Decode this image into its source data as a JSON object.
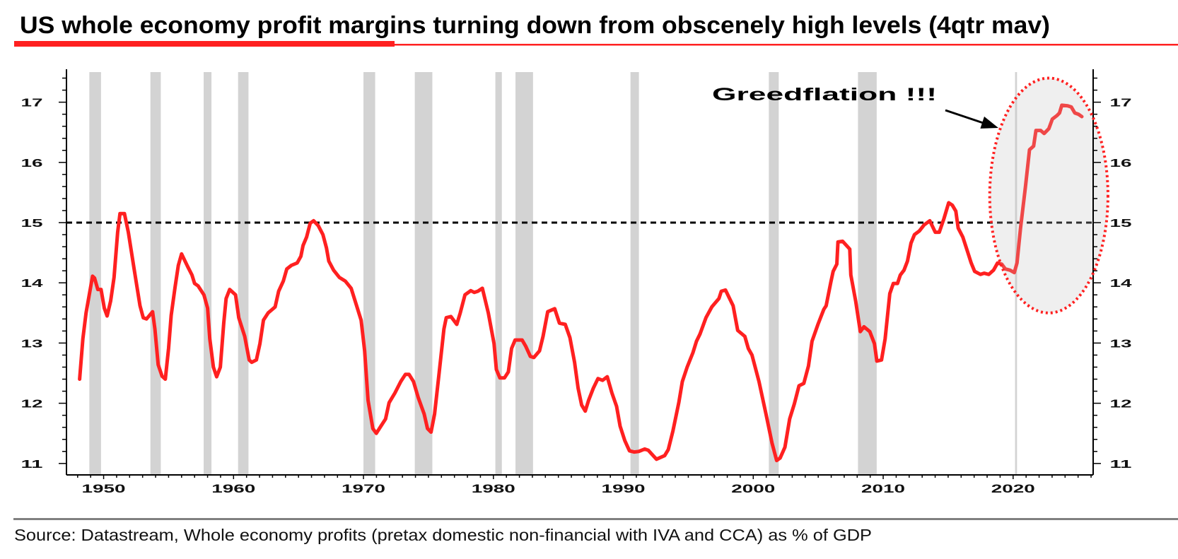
{
  "title": "US whole economy profit margins turning down from obscenely high levels (4qtr mav)",
  "source": "Source: Datastream, Whole economy profits (pretax domestic non-financial with IVA and CCA) as % of GDP",
  "annotation": {
    "text": "Greedflation !!!"
  },
  "colors": {
    "series": "#ff2020",
    "accent": "#ff2020",
    "recession": "#d3d3d3",
    "reference_line": "#000000",
    "highlight_fill": "#bebebe",
    "source_rule": "#808080"
  },
  "chart_data": {
    "type": "line",
    "title": "US whole economy profit margins turning down from obscenely high levels (4qtr mav)",
    "xlabel": "",
    "ylabel": "",
    "xlim": [
      1947.14,
      2026.16
    ],
    "ylim": [
      10.81,
      17.5
    ],
    "grid": false,
    "xticks": [
      1950,
      1960,
      1970,
      1980,
      1990,
      2000,
      2010,
      2020
    ],
    "xtick_labels": [
      "1950",
      "1960",
      "1970",
      "1980",
      "1990",
      "2000",
      "2010",
      "2020"
    ],
    "yticks": [
      11,
      12,
      13,
      14,
      15,
      16,
      17
    ],
    "ytick_labels": [
      "11",
      "12",
      "13",
      "14",
      "15",
      "16",
      "17"
    ],
    "reference_line": {
      "y": 15,
      "style": "dashed"
    },
    "recessions": [
      [
        1948.9,
        1949.8
      ],
      [
        1953.6,
        1954.4
      ],
      [
        1957.7,
        1958.3
      ],
      [
        1960.35,
        1961.15
      ],
      [
        1970.0,
        1970.9
      ],
      [
        1973.95,
        1975.3
      ],
      [
        1980.15,
        1980.65
      ],
      [
        1981.7,
        1983.05
      ],
      [
        1990.55,
        1991.2
      ],
      [
        2001.2,
        2001.96
      ],
      [
        2008.06,
        2009.5
      ],
      [
        2020.15,
        2020.3
      ]
    ],
    "highlight": {
      "x_range": [
        2018.2,
        2027.3
      ],
      "y_range": [
        13.5,
        17.4
      ],
      "label": "Greedflation !!!"
    },
    "series": [
      {
        "points": [
          [
            1948.15,
            12.4
          ],
          [
            1948.4,
            13.07
          ],
          [
            1948.65,
            13.5
          ],
          [
            1949.15,
            14.11
          ],
          [
            1949.3,
            14.08
          ],
          [
            1949.55,
            13.89
          ],
          [
            1949.8,
            13.89
          ],
          [
            1950.05,
            13.58
          ],
          [
            1950.27,
            13.45
          ],
          [
            1950.54,
            13.7
          ],
          [
            1950.8,
            14.09
          ],
          [
            1951.08,
            14.84
          ],
          [
            1951.26,
            15.15
          ],
          [
            1951.6,
            15.15
          ],
          [
            1951.9,
            14.84
          ],
          [
            1952.33,
            14.25
          ],
          [
            1952.8,
            13.62
          ],
          [
            1953.05,
            13.42
          ],
          [
            1953.3,
            13.4
          ],
          [
            1953.77,
            13.52
          ],
          [
            1953.95,
            13.23
          ],
          [
            1954.2,
            12.64
          ],
          [
            1954.5,
            12.45
          ],
          [
            1954.75,
            12.4
          ],
          [
            1955.0,
            12.91
          ],
          [
            1955.2,
            13.46
          ],
          [
            1955.5,
            13.93
          ],
          [
            1955.75,
            14.29
          ],
          [
            1956.0,
            14.48
          ],
          [
            1956.47,
            14.27
          ],
          [
            1956.8,
            14.13
          ],
          [
            1957.0,
            13.99
          ],
          [
            1957.27,
            13.95
          ],
          [
            1957.72,
            13.8
          ],
          [
            1958.0,
            13.58
          ],
          [
            1958.17,
            13.07
          ],
          [
            1958.45,
            12.6
          ],
          [
            1958.7,
            12.44
          ],
          [
            1958.98,
            12.6
          ],
          [
            1959.25,
            13.34
          ],
          [
            1959.43,
            13.74
          ],
          [
            1959.7,
            13.89
          ],
          [
            1960.15,
            13.8
          ],
          [
            1960.4,
            13.42
          ],
          [
            1960.86,
            13.11
          ],
          [
            1961.2,
            12.72
          ],
          [
            1961.4,
            12.68
          ],
          [
            1961.76,
            12.72
          ],
          [
            1962.03,
            12.99
          ],
          [
            1962.3,
            13.38
          ],
          [
            1962.66,
            13.5
          ],
          [
            1963.2,
            13.6
          ],
          [
            1963.47,
            13.86
          ],
          [
            1963.83,
            14.03
          ],
          [
            1964.1,
            14.23
          ],
          [
            1964.45,
            14.29
          ],
          [
            1964.9,
            14.33
          ],
          [
            1965.18,
            14.44
          ],
          [
            1965.35,
            14.62
          ],
          [
            1965.62,
            14.76
          ],
          [
            1965.9,
            14.99
          ],
          [
            1966.16,
            15.03
          ],
          [
            1966.52,
            14.95
          ],
          [
            1966.88,
            14.8
          ],
          [
            1967.15,
            14.58
          ],
          [
            1967.33,
            14.36
          ],
          [
            1967.7,
            14.21
          ],
          [
            1968.14,
            14.09
          ],
          [
            1968.6,
            14.03
          ],
          [
            1969.05,
            13.91
          ],
          [
            1969.82,
            13.38
          ],
          [
            1970.09,
            12.87
          ],
          [
            1970.35,
            12.05
          ],
          [
            1970.72,
            11.58
          ],
          [
            1970.99,
            11.5
          ],
          [
            1971.34,
            11.62
          ],
          [
            1971.7,
            11.74
          ],
          [
            1971.97,
            12.01
          ],
          [
            1972.42,
            12.17
          ],
          [
            1972.87,
            12.36
          ],
          [
            1973.23,
            12.48
          ],
          [
            1973.5,
            12.48
          ],
          [
            1973.85,
            12.36
          ],
          [
            1974.22,
            12.09
          ],
          [
            1974.67,
            11.82
          ],
          [
            1974.93,
            11.58
          ],
          [
            1975.2,
            11.52
          ],
          [
            1975.47,
            11.82
          ],
          [
            1975.83,
            12.52
          ],
          [
            1976.19,
            13.23
          ],
          [
            1976.37,
            13.42
          ],
          [
            1976.73,
            13.44
          ],
          [
            1977.18,
            13.31
          ],
          [
            1977.45,
            13.5
          ],
          [
            1977.81,
            13.8
          ],
          [
            1978.26,
            13.87
          ],
          [
            1978.53,
            13.84
          ],
          [
            1978.8,
            13.86
          ],
          [
            1979.15,
            13.91
          ],
          [
            1979.61,
            13.5
          ],
          [
            1980.05,
            12.99
          ],
          [
            1980.23,
            12.56
          ],
          [
            1980.5,
            12.42
          ],
          [
            1980.85,
            12.42
          ],
          [
            1981.15,
            12.52
          ],
          [
            1981.4,
            12.91
          ],
          [
            1981.67,
            13.05
          ],
          [
            1982.21,
            13.05
          ],
          [
            1982.48,
            12.95
          ],
          [
            1982.84,
            12.78
          ],
          [
            1983.11,
            12.76
          ],
          [
            1983.55,
            12.87
          ],
          [
            1983.82,
            13.11
          ],
          [
            1984.18,
            13.52
          ],
          [
            1984.72,
            13.57
          ],
          [
            1985.08,
            13.33
          ],
          [
            1985.53,
            13.31
          ],
          [
            1985.89,
            13.09
          ],
          [
            1986.25,
            12.68
          ],
          [
            1986.52,
            12.25
          ],
          [
            1986.79,
            11.97
          ],
          [
            1987.07,
            11.87
          ],
          [
            1987.33,
            12.05
          ],
          [
            1987.69,
            12.25
          ],
          [
            1988.05,
            12.41
          ],
          [
            1988.4,
            12.38
          ],
          [
            1988.76,
            12.44
          ],
          [
            1989.12,
            12.17
          ],
          [
            1989.48,
            11.95
          ],
          [
            1989.75,
            11.62
          ],
          [
            1990.11,
            11.38
          ],
          [
            1990.47,
            11.21
          ],
          [
            1990.83,
            11.19
          ],
          [
            1991.19,
            11.2
          ],
          [
            1991.64,
            11.24
          ],
          [
            1991.92,
            11.22
          ],
          [
            1992.55,
            11.07
          ],
          [
            1993.18,
            11.13
          ],
          [
            1993.46,
            11.23
          ],
          [
            1993.82,
            11.54
          ],
          [
            1994.27,
            12.01
          ],
          [
            1994.54,
            12.36
          ],
          [
            1994.91,
            12.6
          ],
          [
            1995.36,
            12.84
          ],
          [
            1995.63,
            13.03
          ],
          [
            1995.9,
            13.15
          ],
          [
            1996.36,
            13.42
          ],
          [
            1996.81,
            13.6
          ],
          [
            1997.36,
            13.74
          ],
          [
            1997.54,
            13.86
          ],
          [
            1997.86,
            13.88
          ],
          [
            1998.45,
            13.62
          ],
          [
            1998.8,
            13.21
          ],
          [
            1999.35,
            13.11
          ],
          [
            1999.62,
            12.91
          ],
          [
            1999.9,
            12.8
          ],
          [
            2000.44,
            12.36
          ],
          [
            2000.98,
            11.82
          ],
          [
            2001.44,
            11.34
          ],
          [
            2001.8,
            11.05
          ],
          [
            2002.07,
            11.09
          ],
          [
            2002.44,
            11.27
          ],
          [
            2002.8,
            11.74
          ],
          [
            2003.16,
            11.99
          ],
          [
            2003.52,
            12.29
          ],
          [
            2003.89,
            12.33
          ],
          [
            2004.25,
            12.62
          ],
          [
            2004.52,
            13.03
          ],
          [
            2004.98,
            13.31
          ],
          [
            2005.43,
            13.56
          ],
          [
            2005.61,
            13.62
          ],
          [
            2005.97,
            14.01
          ],
          [
            2006.15,
            14.19
          ],
          [
            2006.43,
            14.31
          ],
          [
            2006.52,
            14.68
          ],
          [
            2006.88,
            14.69
          ],
          [
            2007.43,
            14.56
          ],
          [
            2007.51,
            14.13
          ],
          [
            2007.88,
            13.7
          ],
          [
            2008.24,
            13.19
          ],
          [
            2008.52,
            13.27
          ],
          [
            2008.97,
            13.19
          ],
          [
            2009.33,
            12.99
          ],
          [
            2009.51,
            12.7
          ],
          [
            2009.87,
            12.72
          ],
          [
            2010.15,
            13.07
          ],
          [
            2010.51,
            13.82
          ],
          [
            2010.78,
            13.99
          ],
          [
            2011.1,
            13.99
          ],
          [
            2011.32,
            14.13
          ],
          [
            2011.6,
            14.21
          ],
          [
            2011.87,
            14.36
          ],
          [
            2012.14,
            14.66
          ],
          [
            2012.41,
            14.8
          ],
          [
            2012.78,
            14.86
          ],
          [
            2013.14,
            14.96
          ],
          [
            2013.59,
            15.03
          ],
          [
            2014.01,
            14.84
          ],
          [
            2014.32,
            14.84
          ],
          [
            2014.68,
            15.07
          ],
          [
            2015.04,
            15.33
          ],
          [
            2015.32,
            15.29
          ],
          [
            2015.59,
            15.19
          ],
          [
            2015.77,
            14.91
          ],
          [
            2016.13,
            14.76
          ],
          [
            2016.49,
            14.52
          ],
          [
            2016.77,
            14.33
          ],
          [
            2017.04,
            14.19
          ],
          [
            2017.49,
            14.14
          ],
          [
            2017.77,
            14.16
          ],
          [
            2018.13,
            14.14
          ],
          [
            2018.49,
            14.21
          ],
          [
            2018.8,
            14.33
          ],
          [
            2019.13,
            14.31
          ],
          [
            2019.4,
            14.23
          ],
          [
            2019.76,
            14.21
          ],
          [
            2020.09,
            14.17
          ],
          [
            2020.3,
            14.33
          ],
          [
            2020.57,
            14.91
          ],
          [
            2020.94,
            15.58
          ],
          [
            2021.26,
            16.21
          ],
          [
            2021.58,
            16.27
          ],
          [
            2021.76,
            16.53
          ],
          [
            2022.12,
            16.53
          ],
          [
            2022.39,
            16.48
          ],
          [
            2022.75,
            16.56
          ],
          [
            2023.02,
            16.72
          ],
          [
            2023.39,
            16.78
          ],
          [
            2023.57,
            16.82
          ],
          [
            2023.75,
            16.95
          ],
          [
            2024.2,
            16.94
          ],
          [
            2024.48,
            16.92
          ],
          [
            2024.75,
            16.82
          ],
          [
            2025.02,
            16.8
          ],
          [
            2025.29,
            16.76
          ]
        ]
      }
    ]
  }
}
